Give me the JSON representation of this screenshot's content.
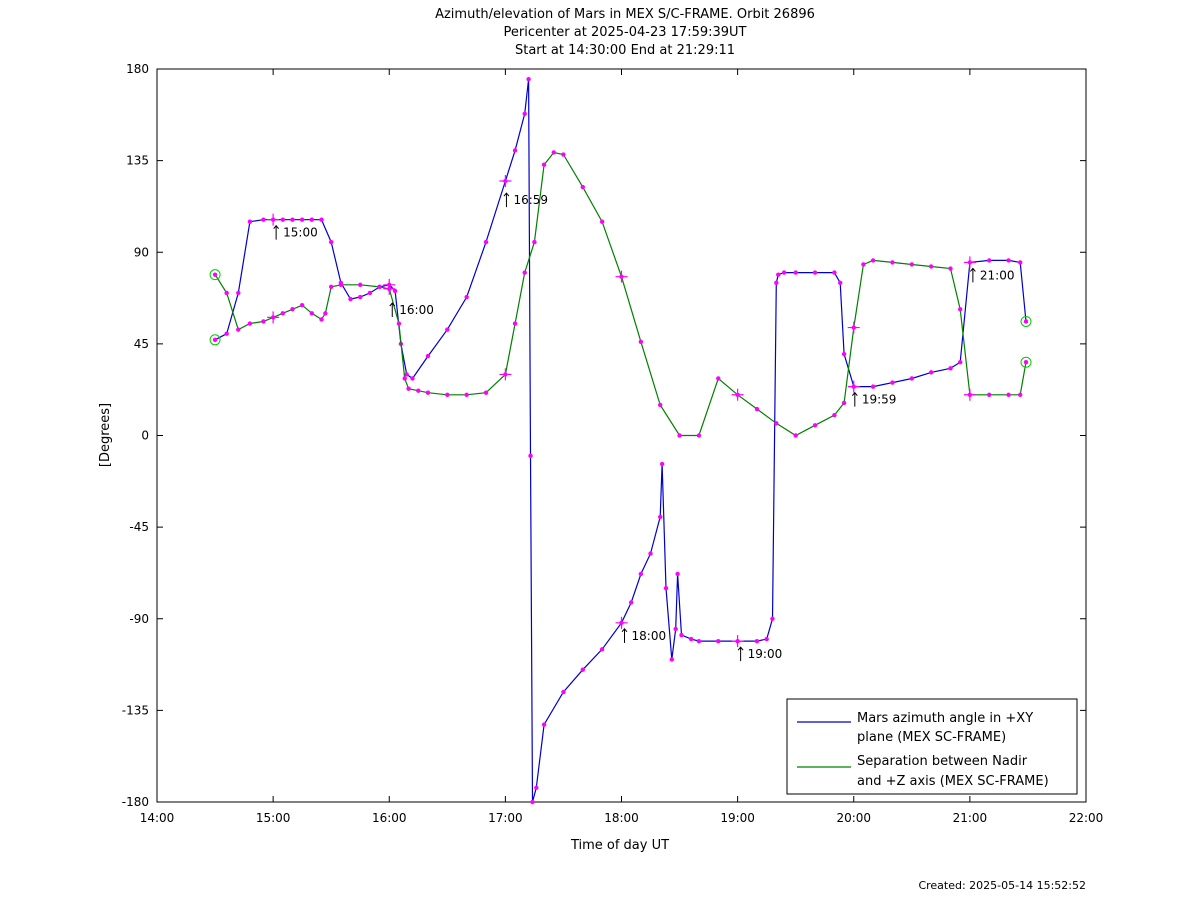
{
  "chart_data": {
    "type": "line",
    "title": [
      "Azimuth/elevation of Mars in MEX S/C-FRAME.  Orbit 26896",
      "Pericenter at 2025-04-23 17:59:39UT",
      "Start at 14:30:00 End at 21:29:11"
    ],
    "xlabel": "Time of day UT",
    "ylabel": "[Degrees]",
    "xlim": [
      "14:00",
      "22:00"
    ],
    "ylim": [
      -180,
      180
    ],
    "x_ticks": [
      "14:00",
      "15:00",
      "16:00",
      "17:00",
      "18:00",
      "19:00",
      "20:00",
      "21:00",
      "22:00"
    ],
    "y_ticks": [
      180,
      135,
      90,
      45,
      0,
      -45,
      -90,
      -135,
      -180
    ],
    "grid": false,
    "legend_position": "bottom-right",
    "footer": "Created: 2025-05-14 15:52:52",
    "colors": {
      "azimuth": "#0000cc",
      "separation": "#008000",
      "markers": "#ff00ff",
      "endpoints": "#00cc00"
    },
    "series": [
      {
        "name": "Mars azimuth angle in +XY plane (MEX SC-FRAME)",
        "legend_lines": [
          "Mars azimuth angle in +XY",
          "plane (MEX SC-FRAME)"
        ],
        "x": [
          "14:30",
          "14:36",
          "14:42",
          "14:48",
          "14:55",
          "15:00",
          "15:05",
          "15:10",
          "15:15",
          "15:20",
          "15:25",
          "15:30",
          "15:35",
          "15:40",
          "15:45",
          "15:50",
          "15:55",
          "16:00",
          "16:03",
          "16:06",
          "16:09",
          "16:12",
          "16:20",
          "16:30",
          "16:40",
          "16:50",
          "17:00",
          "17:05",
          "17:10",
          "17:12",
          "17:13",
          "17:14",
          "17:16",
          "17:20",
          "17:30",
          "17:40",
          "17:50",
          "18:00",
          "18:05",
          "18:10",
          "18:15",
          "18:20",
          "18:21",
          "18:23",
          "18:26",
          "18:28",
          "18:29",
          "18:31",
          "18:36",
          "18:40",
          "18:50",
          "19:00",
          "19:10",
          "19:15",
          "19:18",
          "19:20",
          "19:21",
          "19:24",
          "19:30",
          "19:40",
          "19:50",
          "19:53",
          "19:55",
          "20:00",
          "20:10",
          "20:20",
          "20:30",
          "20:40",
          "20:50",
          "20:55",
          "21:00",
          "21:10",
          "21:20",
          "21:26",
          "21:29"
        ],
        "y": [
          47,
          50,
          70,
          105,
          106,
          106,
          106,
          106,
          106,
          106,
          106,
          95,
          75,
          67,
          68,
          70,
          73,
          74,
          71,
          45,
          30,
          28,
          39,
          52,
          68,
          95,
          125,
          140,
          158,
          175,
          -10,
          -180,
          -173,
          -142,
          -126,
          -115,
          -105,
          -92,
          -82,
          -68,
          -58,
          -40,
          -14,
          -75,
          -110,
          -95,
          -68,
          -98,
          -100,
          -101,
          -101,
          -101,
          -101,
          -100,
          -90,
          75,
          79,
          80,
          80,
          80,
          80,
          75,
          40,
          24,
          24,
          26,
          28,
          31,
          33,
          36,
          85,
          86,
          86,
          85,
          56
        ]
      },
      {
        "name": "Separation between Nadir and +Z axis (MEX SC-FRAME)",
        "legend_lines": [
          "Separation between Nadir",
          "and +Z axis (MEX SC-FRAME)"
        ],
        "x": [
          "14:30",
          "14:36",
          "14:42",
          "14:48",
          "14:55",
          "15:00",
          "15:05",
          "15:10",
          "15:15",
          "15:20",
          "15:25",
          "15:27",
          "15:30",
          "15:35",
          "15:45",
          "15:55",
          "16:00",
          "16:05",
          "16:08",
          "16:10",
          "16:15",
          "16:20",
          "16:30",
          "16:40",
          "16:50",
          "17:00",
          "17:05",
          "17:10",
          "17:15",
          "17:20",
          "17:25",
          "17:30",
          "17:40",
          "17:50",
          "18:00",
          "18:10",
          "18:20",
          "18:30",
          "18:40",
          "18:50",
          "19:00",
          "19:10",
          "19:20",
          "19:30",
          "19:40",
          "19:50",
          "19:55",
          "20:00",
          "20:05",
          "20:10",
          "20:20",
          "20:30",
          "20:40",
          "20:50",
          "20:55",
          "21:00",
          "21:10",
          "21:20",
          "21:26",
          "21:29"
        ],
        "y": [
          79,
          70,
          52,
          55,
          56,
          58,
          60,
          62,
          64,
          60,
          57,
          60,
          73,
          74,
          74,
          73,
          72,
          55,
          28,
          23,
          22,
          21,
          20,
          20,
          21,
          30,
          55,
          80,
          95,
          133,
          139,
          138,
          122,
          105,
          78,
          46,
          15,
          0,
          0,
          28,
          20,
          13,
          6,
          0,
          5,
          10,
          16,
          53,
          84,
          86,
          85,
          84,
          83,
          82,
          62,
          20,
          20,
          20,
          20,
          36
        ]
      }
    ],
    "hour_labels": [
      {
        "x": "15:00",
        "y": 106,
        "text": "15:00"
      },
      {
        "x": "16:00",
        "y": 68,
        "text": "16:00"
      },
      {
        "x": "16:59",
        "y": 122,
        "text": "16:59"
      },
      {
        "x": "18:00",
        "y": -92,
        "text": "18:00"
      },
      {
        "x": "19:00",
        "y": -101,
        "text": "19:00"
      },
      {
        "x": "19:59",
        "y": 24,
        "text": "19:59"
      },
      {
        "x": "21:00",
        "y": 85,
        "text": "21:00"
      }
    ]
  }
}
